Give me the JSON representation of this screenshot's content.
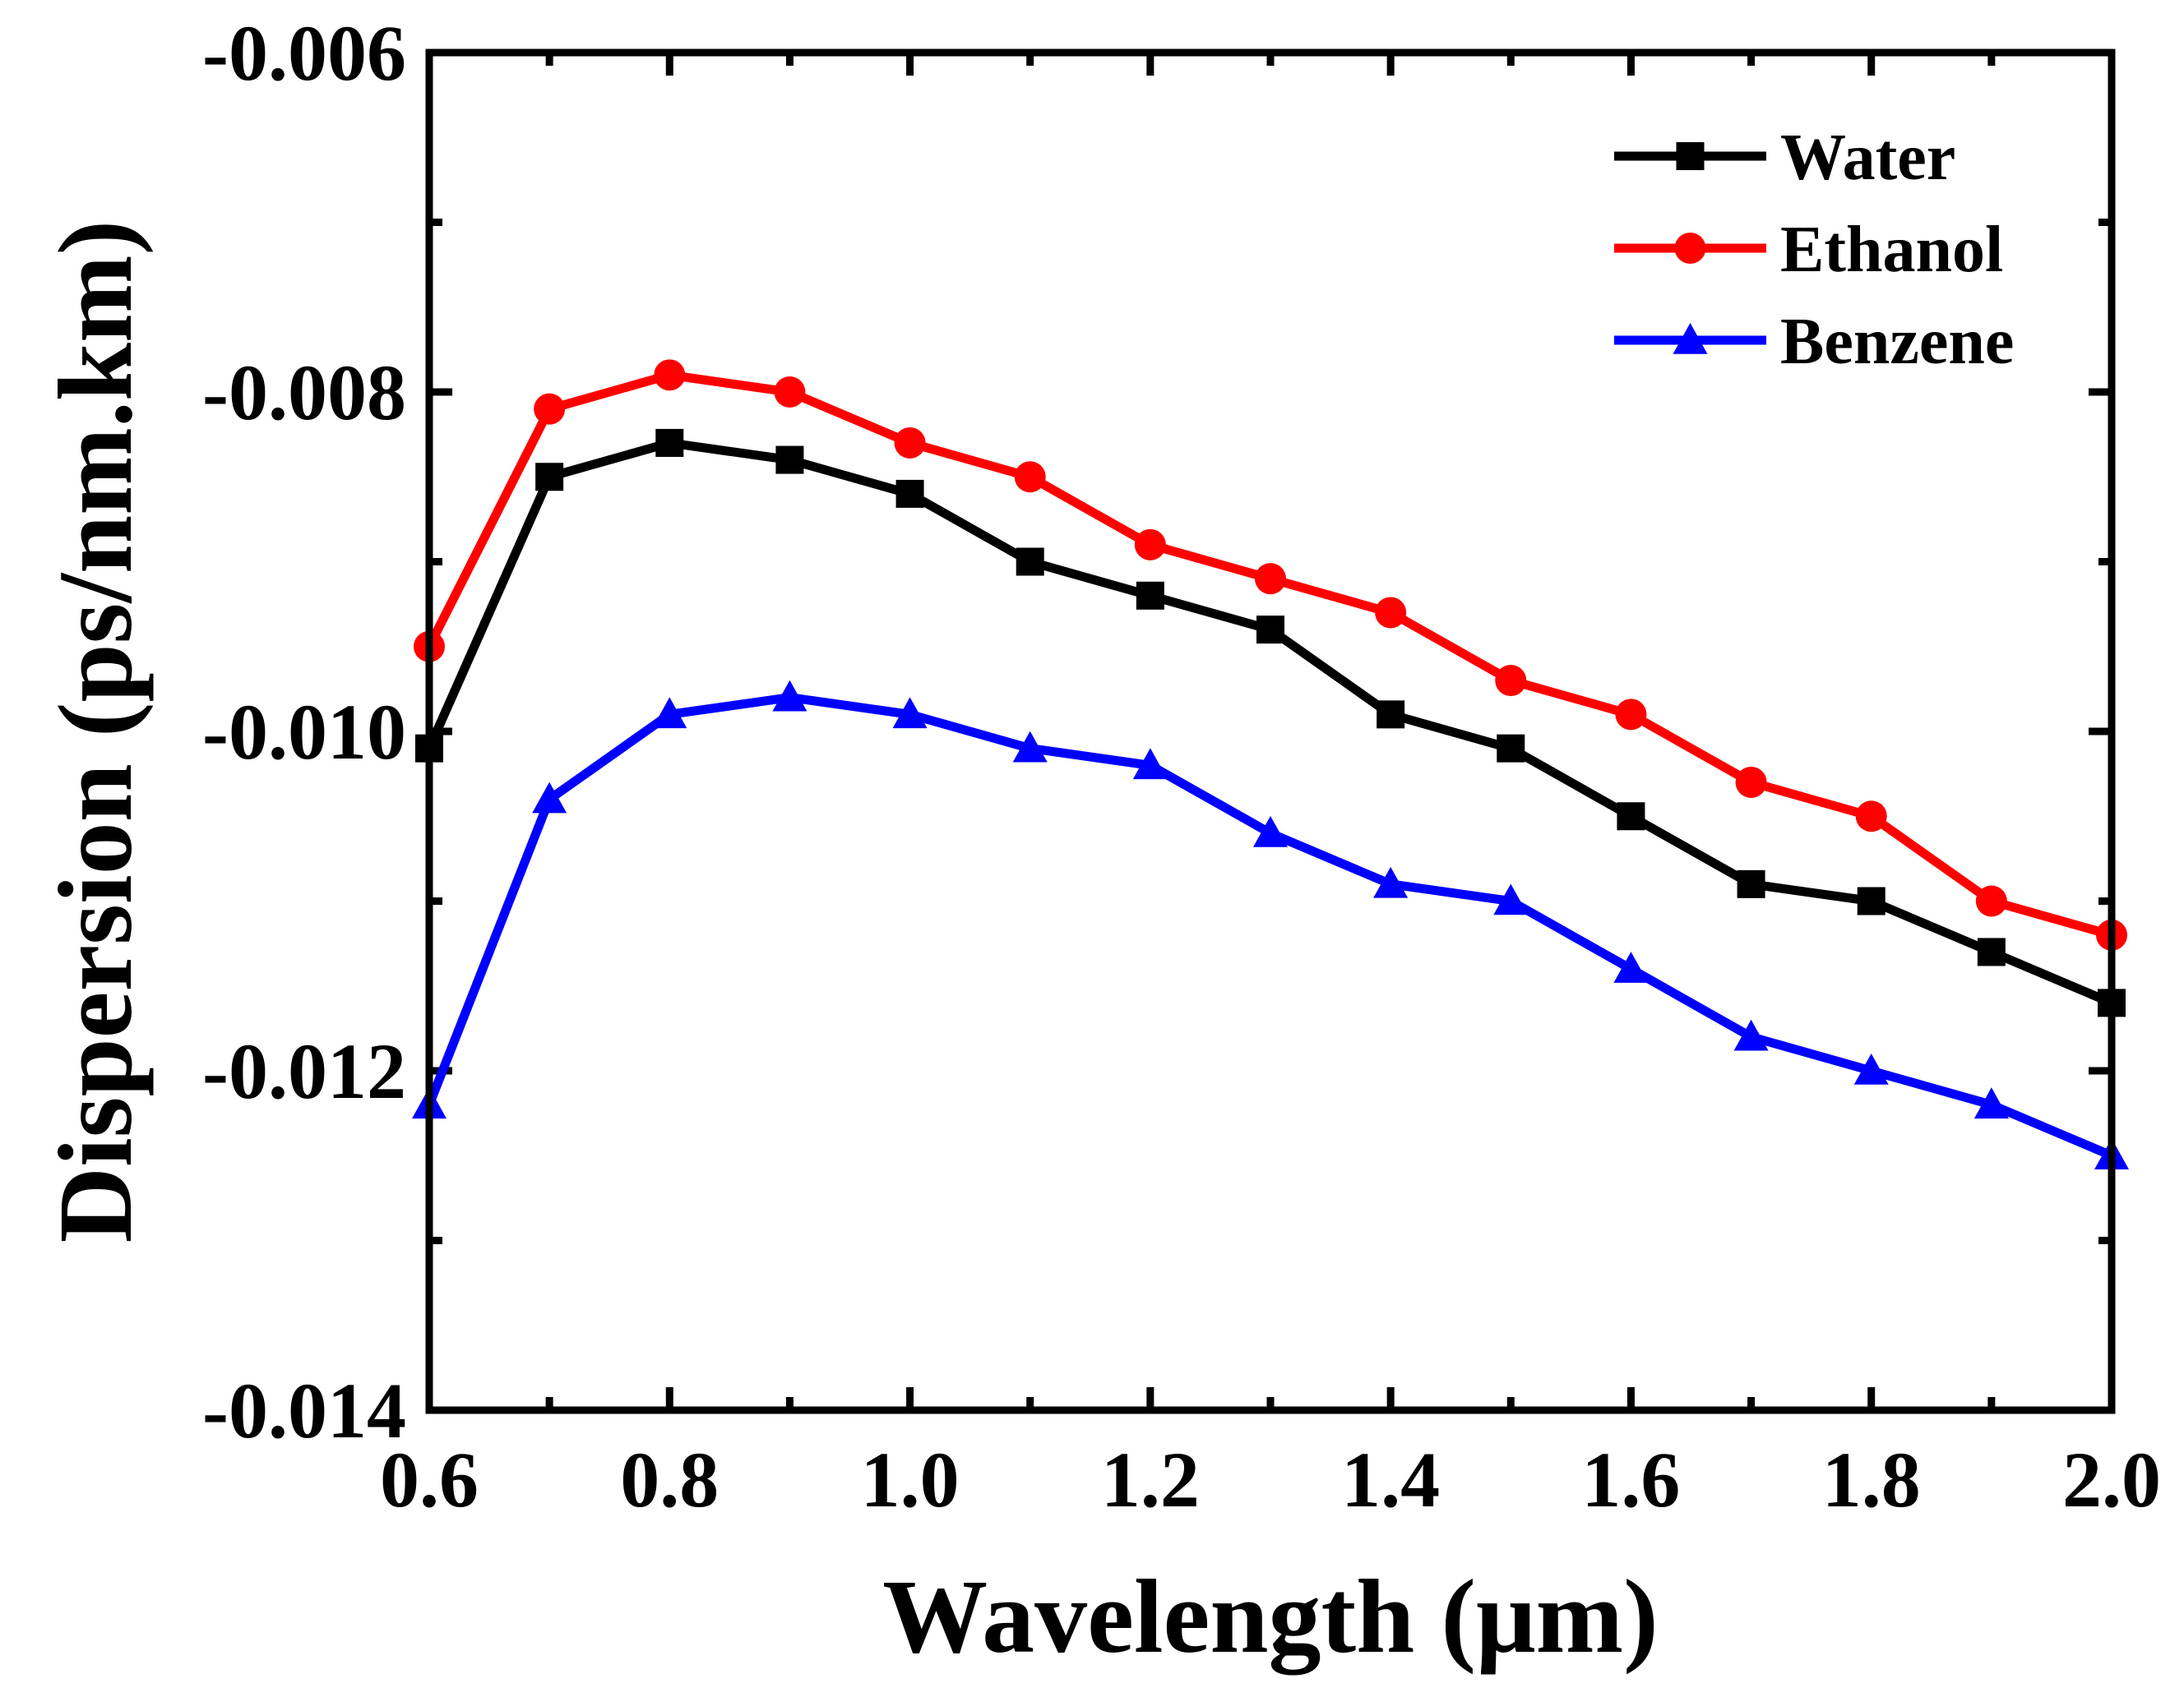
{
  "chart_data": {
    "type": "line",
    "title": "",
    "xlabel": "Wavelength (μm)",
    "ylabel": "Dispersion (ps/nm.km)",
    "xlim": [
      0.6,
      2.0
    ],
    "ylim": [
      -0.014,
      -0.006
    ],
    "xticks": [
      0.6,
      0.8,
      1.0,
      1.2,
      1.4,
      1.6,
      1.8,
      2.0
    ],
    "xtick_labels": [
      "0.6",
      "0.8",
      "1.0",
      "1.2",
      "1.4",
      "1.6",
      "1.8",
      "2.0"
    ],
    "xminor_ticks": [
      0.7,
      0.9,
      1.1,
      1.3,
      1.5,
      1.7,
      1.9
    ],
    "yticks": [
      -0.014,
      -0.012,
      -0.01,
      -0.008,
      -0.006
    ],
    "ytick_labels": [
      "-0.014",
      "-0.012",
      "-0.010",
      "-0.008",
      "-0.006"
    ],
    "yminor_ticks": [
      -0.013,
      -0.011,
      -0.009,
      -0.007
    ],
    "grid": false,
    "legend_position": "top-right",
    "x": [
      0.6,
      0.7,
      0.8,
      0.9,
      1.0,
      1.1,
      1.2,
      1.3,
      1.4,
      1.5,
      1.6,
      1.7,
      1.8,
      1.9,
      2.0
    ],
    "series": [
      {
        "name": "Water",
        "color": "#000000",
        "marker": "square",
        "values": [
          -0.0101,
          -0.0085,
          -0.0083,
          -0.0084,
          -0.0086,
          -0.009,
          -0.0092,
          -0.0094,
          -0.0099,
          -0.0101,
          -0.0105,
          -0.0109,
          -0.011,
          -0.0113,
          -0.0116
        ]
      },
      {
        "name": "Ethanol",
        "color": "#ff0000",
        "marker": "circle",
        "values": [
          -0.0095,
          -0.0081,
          -0.0079,
          -0.008,
          -0.0083,
          -0.0085,
          -0.0089,
          -0.0091,
          -0.0093,
          -0.0097,
          -0.0099,
          -0.0103,
          -0.0105,
          -0.011,
          -0.0112
        ]
      },
      {
        "name": "Benzene",
        "color": "#0000ff",
        "marker": "triangle",
        "values": [
          -0.0122,
          -0.0104,
          -0.0099,
          -0.0098,
          -0.0099,
          -0.0101,
          -0.0102,
          -0.0106,
          -0.0109,
          -0.011,
          -0.0114,
          -0.0118,
          -0.012,
          -0.0122,
          -0.0125
        ]
      }
    ]
  }
}
